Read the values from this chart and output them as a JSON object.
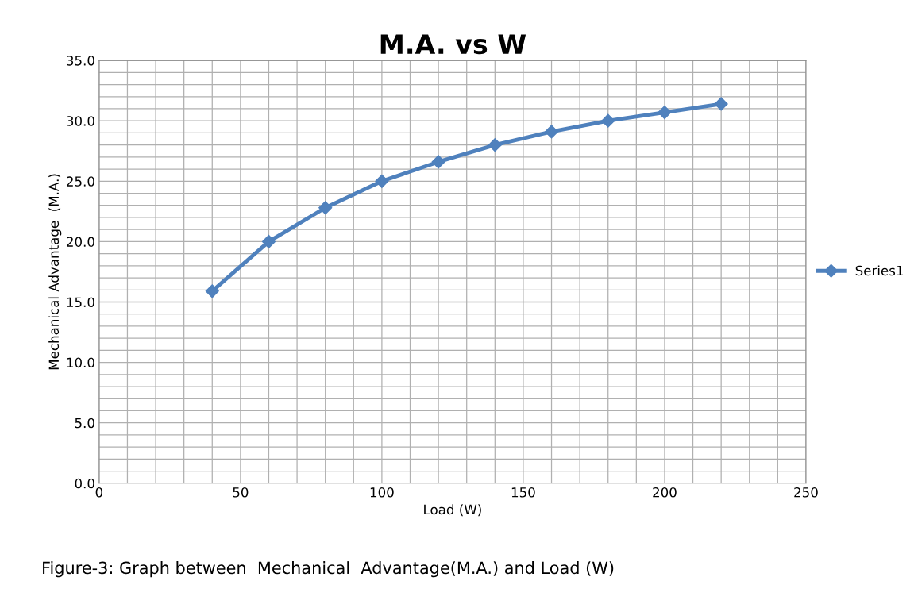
{
  "chart_data": {
    "type": "line",
    "title": "M.A. vs W",
    "xlabel": "Load (W)",
    "ylabel": "Mechanical Advantage  (M.A.)",
    "annotations": [
      "Figure-3: Graph between  Mechanical  Advantage(M.A.) and Load (W)"
    ],
    "x": [
      40,
      60,
      80,
      100,
      120,
      140,
      160,
      180,
      200,
      220
    ],
    "series": [
      {
        "name": "Series1",
        "color": "#4f81bd",
        "values": [
          15.9,
          20.0,
          22.8,
          25.0,
          26.6,
          28.0,
          29.1,
          30.0,
          30.7,
          31.4
        ]
      }
    ],
    "xlim": [
      0,
      250
    ],
    "ylim": [
      0,
      35
    ],
    "xticks": [
      0,
      {
        "value": 10,
        "label": null
      },
      {
        "value": 20,
        "label": null
      },
      {
        "value": 30,
        "label": null
      },
      {
        "value": 40,
        "label": null
      },
      50,
      {
        "value": 60,
        "label": null
      },
      {
        "value": 70,
        "label": null
      },
      {
        "value": 80,
        "label": null
      },
      {
        "value": 90,
        "label": null
      },
      100,
      {
        "value": 110,
        "label": null
      },
      {
        "value": 120,
        "label": null
      },
      {
        "value": 130,
        "label": null
      },
      {
        "value": 140,
        "label": null
      },
      150,
      {
        "value": 160,
        "label": null
      },
      {
        "value": 170,
        "label": null
      },
      {
        "value": 180,
        "label": null
      },
      {
        "value": 190,
        "label": null
      },
      200,
      {
        "value": 210,
        "label": null
      },
      {
        "value": 220,
        "label": null
      },
      {
        "value": 230,
        "label": null
      },
      {
        "value": 240,
        "label": null
      },
      250
    ],
    "yticks": [
      {
        "value": 0,
        "label": "0.0"
      },
      {
        "value": 1,
        "label": null
      },
      {
        "value": 2,
        "label": null
      },
      {
        "value": 3,
        "label": null
      },
      {
        "value": 4,
        "label": null
      },
      {
        "value": 5,
        "label": "5.0"
      },
      {
        "value": 6,
        "label": null
      },
      {
        "value": 7,
        "label": null
      },
      {
        "value": 8,
        "label": null
      },
      {
        "value": 9,
        "label": null
      },
      {
        "value": 10,
        "label": "10.0"
      },
      {
        "value": 11,
        "label": null
      },
      {
        "value": 12,
        "label": null
      },
      {
        "value": 13,
        "label": null
      },
      {
        "value": 14,
        "label": null
      },
      {
        "value": 15,
        "label": "15.0"
      },
      {
        "value": 16,
        "label": null
      },
      {
        "value": 17,
        "label": null
      },
      {
        "value": 18,
        "label": null
      },
      {
        "value": 19,
        "label": null
      },
      {
        "value": 20,
        "label": "20.0"
      },
      {
        "value": 21,
        "label": null
      },
      {
        "value": 22,
        "label": null
      },
      {
        "value": 23,
        "label": null
      },
      {
        "value": 24,
        "label": null
      },
      {
        "value": 25,
        "label": "25.0"
      },
      {
        "value": 26,
        "label": null
      },
      {
        "value": 27,
        "label": null
      },
      {
        "value": 28,
        "label": null
      },
      {
        "value": 29,
        "label": null
      },
      {
        "value": 30,
        "label": "30.0"
      },
      {
        "value": 31,
        "label": null
      },
      {
        "value": 32,
        "label": null
      },
      {
        "value": 33,
        "label": null
      },
      {
        "value": 34,
        "label": null
      },
      {
        "value": 35,
        "label": "35.0"
      }
    ],
    "grid": true,
    "legend": "right",
    "marker": "diamond",
    "line_style": "solid"
  }
}
